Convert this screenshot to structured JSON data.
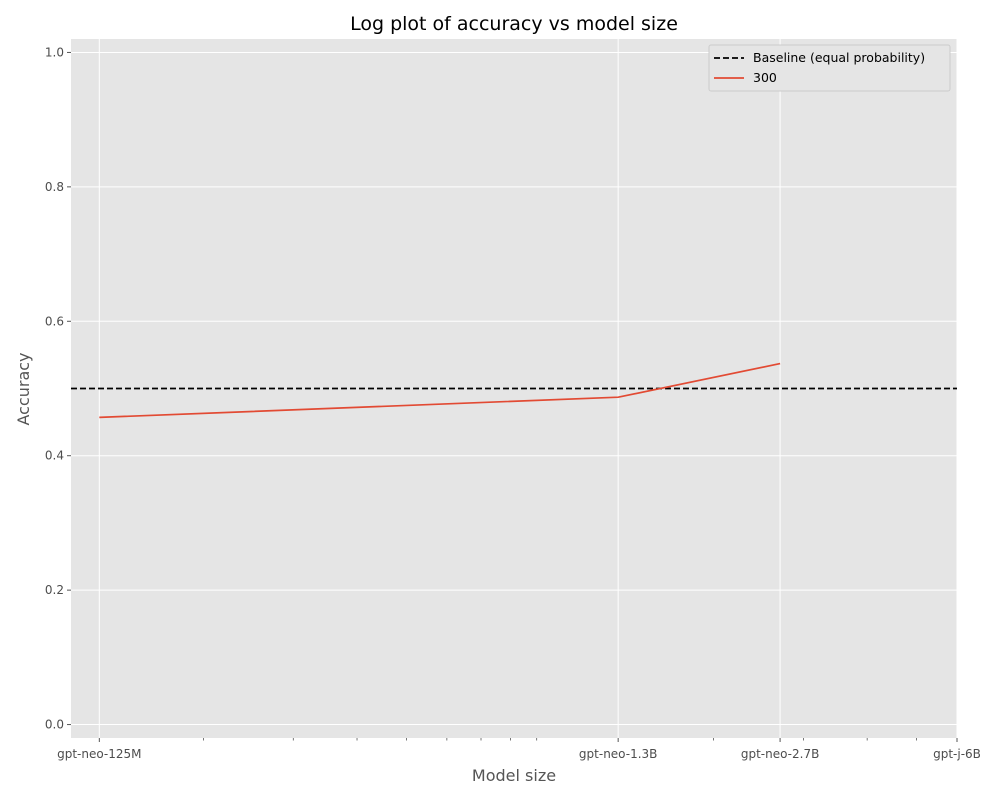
{
  "chart_data": {
    "type": "line",
    "title": "Log plot of accuracy vs model size",
    "xlabel": "Model size",
    "ylabel": "Accuracy",
    "x_scale": "log",
    "x_unit_params": "parameters",
    "x_ticks": [
      {
        "value": 125000000,
        "label": "gpt-neo-125M"
      },
      {
        "value": 1300000000,
        "label": "gpt-neo-1.3B"
      },
      {
        "value": 2700000000,
        "label": "gpt-neo-2.7B"
      },
      {
        "value": 6000000000,
        "label": "gpt-j-6B"
      }
    ],
    "xlim": [
      110000000,
      6000000000
    ],
    "ylim": [
      -0.02,
      1.02
    ],
    "y_ticks": [
      0.0,
      0.2,
      0.4,
      0.6,
      0.8,
      1.0
    ],
    "y_tick_labels": [
      "0.0",
      "0.2",
      "0.4",
      "0.6",
      "0.8",
      "1.0"
    ],
    "grid": true,
    "legend_position": "top-right",
    "baseline": {
      "name": "Baseline (equal probability)",
      "y": 0.5,
      "color": "#000000",
      "style": "dashed"
    },
    "series": [
      {
        "name": "300",
        "color": "#e24a33",
        "x": [
          125000000,
          1300000000,
          2700000000
        ],
        "y": [
          0.457,
          0.487,
          0.537
        ]
      }
    ],
    "colors": {
      "background": "#e5e5e5",
      "grid": "#ffffff"
    }
  }
}
